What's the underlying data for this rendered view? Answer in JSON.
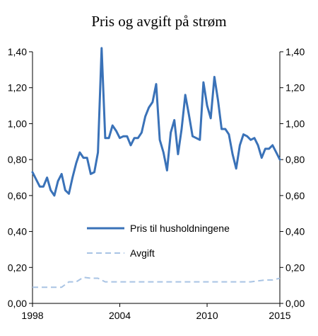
{
  "chart_data": {
    "type": "line",
    "title": "Pris og avgift på strøm",
    "xlabel": "",
    "ylabel": "",
    "xlim": [
      1998,
      2015
    ],
    "ylim": [
      0,
      1.4
    ],
    "x_ticks": [
      1998,
      2004,
      2010,
      2015
    ],
    "x_tick_labels": [
      "1998",
      "2004",
      "2010",
      "2015"
    ],
    "y_ticks": [
      0,
      0.2,
      0.4,
      0.6,
      0.8,
      1.0,
      1.2,
      1.4
    ],
    "y_tick_labels": [
      "0,00",
      "0,20",
      "0,40",
      "0,60",
      "0,80",
      "1,00",
      "1,20",
      "1,40"
    ],
    "right_axis_mirror": true,
    "grid": false,
    "legend_position": "lower-center",
    "series": [
      {
        "name": "Pris til husholdningene",
        "style": "solid",
        "color": "#3a72b8",
        "x": [
          1998.0,
          1998.25,
          1998.5,
          1998.75,
          1999.0,
          1999.25,
          1999.5,
          1999.75,
          2000.0,
          2000.25,
          2000.5,
          2000.75,
          2001.0,
          2001.25,
          2001.5,
          2001.75,
          2002.0,
          2002.25,
          2002.5,
          2002.75,
          2003.0,
          2003.25,
          2003.5,
          2003.75,
          2004.0,
          2004.25,
          2004.5,
          2004.75,
          2005.0,
          2005.25,
          2005.5,
          2005.75,
          2006.0,
          2006.25,
          2006.5,
          2006.75,
          2007.0,
          2007.25,
          2007.5,
          2007.75,
          2008.0,
          2008.25,
          2008.5,
          2008.75,
          2009.0,
          2009.25,
          2009.5,
          2009.75,
          2010.0,
          2010.25,
          2010.5,
          2010.75,
          2011.0,
          2011.25,
          2011.5,
          2011.75,
          2012.0,
          2012.25,
          2012.5,
          2012.75,
          2013.0,
          2013.25,
          2013.5,
          2013.75,
          2014.0,
          2014.25,
          2014.5,
          2014.75,
          2015.0
        ],
        "values": [
          0.73,
          0.69,
          0.65,
          0.65,
          0.7,
          0.63,
          0.6,
          0.68,
          0.72,
          0.63,
          0.61,
          0.7,
          0.78,
          0.84,
          0.81,
          0.81,
          0.72,
          0.73,
          0.84,
          1.42,
          0.92,
          0.92,
          0.99,
          0.96,
          0.92,
          0.93,
          0.93,
          0.88,
          0.92,
          0.92,
          0.95,
          1.04,
          1.09,
          1.12,
          1.22,
          0.91,
          0.84,
          0.74,
          0.95,
          1.02,
          0.83,
          0.97,
          1.16,
          1.05,
          0.93,
          0.92,
          0.91,
          1.23,
          1.1,
          1.03,
          1.26,
          1.13,
          0.97,
          0.97,
          0.94,
          0.83,
          0.75,
          0.88,
          0.94,
          0.93,
          0.91,
          0.92,
          0.88,
          0.81,
          0.86,
          0.86,
          0.88,
          0.84,
          0.8
        ]
      },
      {
        "name": "Avgift",
        "style": "dashed",
        "color": "#a9c4e4",
        "x": [
          1998.0,
          1998.5,
          1999.0,
          1999.5,
          2000.0,
          2000.5,
          2001.0,
          2001.5,
          2002.0,
          2002.5,
          2003.0,
          2004.0,
          2005.0,
          2006.0,
          2007.0,
          2008.0,
          2009.0,
          2010.0,
          2011.0,
          2012.0,
          2013.0,
          2013.5,
          2014.0,
          2014.5,
          2015.0
        ],
        "values": [
          0.09,
          0.09,
          0.09,
          0.09,
          0.09,
          0.12,
          0.12,
          0.145,
          0.14,
          0.14,
          0.12,
          0.12,
          0.12,
          0.12,
          0.12,
          0.12,
          0.12,
          0.12,
          0.12,
          0.12,
          0.12,
          0.125,
          0.13,
          0.13,
          0.14
        ]
      }
    ]
  }
}
